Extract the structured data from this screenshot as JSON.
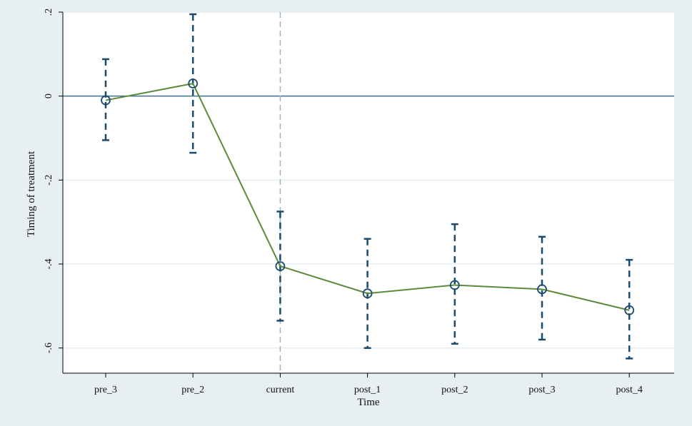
{
  "colors": {
    "background": "#e7eff3",
    "plot_background": "#ffffff",
    "gridline": "#e6eef2",
    "zero_line": "#3f6f8a",
    "reference_line": "#9fb7bf",
    "series_line": "#5b8a3a",
    "marker": "#1a4a6e",
    "error_bar": "#1a4a6e",
    "axis": "#000000"
  },
  "chart_data": {
    "type": "line",
    "title": "",
    "xlabel": "Time",
    "ylabel": "Timing of treatment",
    "categories": [
      "pre_3",
      "pre_2",
      "current",
      "post_1",
      "post_2",
      "post_3",
      "post_4"
    ],
    "ylim": [
      -0.66,
      0.2
    ],
    "yticks": [
      {
        "value": 0.2,
        "label": ".2"
      },
      {
        "value": 0.0,
        "label": "0"
      },
      {
        "value": -0.2,
        "label": "-.2"
      },
      {
        "value": -0.4,
        "label": "-.4"
      },
      {
        "value": -0.6,
        "label": "-.6"
      }
    ],
    "grid": true,
    "reference_lines": {
      "horizontal_at": 0,
      "vertical_at_category": "current",
      "vertical_style": "dashed"
    },
    "series": [
      {
        "values": [
          -0.01,
          0.03,
          -0.405,
          -0.47,
          -0.45,
          -0.46,
          -0.51
        ],
        "ci_lower": [
          -0.105,
          -0.135,
          -0.535,
          -0.6,
          -0.59,
          -0.58,
          -0.625
        ],
        "ci_upper": [
          0.088,
          0.195,
          -0.275,
          -0.34,
          -0.305,
          -0.335,
          -0.39
        ],
        "marker": "hollow-circle",
        "error_bar_style": "dashed"
      }
    ]
  }
}
